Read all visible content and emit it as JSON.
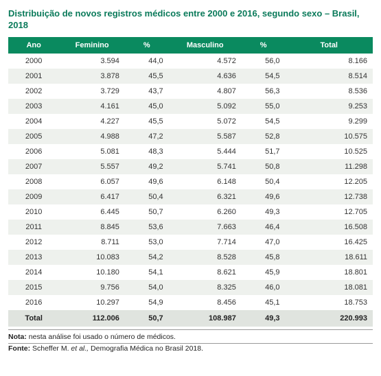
{
  "title": "Distribuição de novos registros médicos entre 2000 e 2016, segundo sexo – Brasil, 2018",
  "columns": [
    "Ano",
    "Feminino",
    "%",
    "Masculino",
    "%",
    "Total"
  ],
  "rows": [
    [
      "2000",
      "3.594",
      "44,0",
      "4.572",
      "56,0",
      "8.166"
    ],
    [
      "2001",
      "3.878",
      "45,5",
      "4.636",
      "54,5",
      "8.514"
    ],
    [
      "2002",
      "3.729",
      "43,7",
      "4.807",
      "56,3",
      "8.536"
    ],
    [
      "2003",
      "4.161",
      "45,0",
      "5.092",
      "55,0",
      "9.253"
    ],
    [
      "2004",
      "4.227",
      "45,5",
      "5.072",
      "54,5",
      "9.299"
    ],
    [
      "2005",
      "4.988",
      "47,2",
      "5.587",
      "52,8",
      "10.575"
    ],
    [
      "2006",
      "5.081",
      "48,3",
      "5.444",
      "51,7",
      "10.525"
    ],
    [
      "2007",
      "5.557",
      "49,2",
      "5.741",
      "50,8",
      "11.298"
    ],
    [
      "2008",
      "6.057",
      "49,6",
      "6.148",
      "50,4",
      "12.205"
    ],
    [
      "2009",
      "6.417",
      "50,4",
      "6.321",
      "49,6",
      "12.738"
    ],
    [
      "2010",
      "6.445",
      "50,7",
      "6.260",
      "49,3",
      "12.705"
    ],
    [
      "2011",
      "8.845",
      "53,6",
      "7.663",
      "46,4",
      "16.508"
    ],
    [
      "2012",
      "8.711",
      "53,0",
      "7.714",
      "47,0",
      "16.425"
    ],
    [
      "2013",
      "10.083",
      "54,2",
      "8.528",
      "45,8",
      "18.611"
    ],
    [
      "2014",
      "10.180",
      "54,1",
      "8.621",
      "45,9",
      "18.801"
    ],
    [
      "2015",
      "9.756",
      "54,0",
      "8.325",
      "46,0",
      "18.081"
    ],
    [
      "2016",
      "10.297",
      "54,9",
      "8.456",
      "45,1",
      "18.753"
    ]
  ],
  "footer": [
    "Total",
    "112.006",
    "50,7",
    "108.987",
    "49,3",
    "220.993"
  ],
  "note_label": "Nota:",
  "note_text": " nesta análise foi usado o número de médicos.",
  "fonte_label": "Fonte:",
  "fonte_prefix": " Scheffer M. ",
  "fonte_em": "et al.,",
  "fonte_suffix": " Demografia Médica no Brasil 2018.",
  "colors": {
    "header_bg": "#0a8a5f",
    "header_fg": "#ffffff",
    "row_even": "#ffffff",
    "row_odd": "#eef1ed",
    "footer_bg": "#e0e4df",
    "title_color": "#0a7a5a"
  }
}
